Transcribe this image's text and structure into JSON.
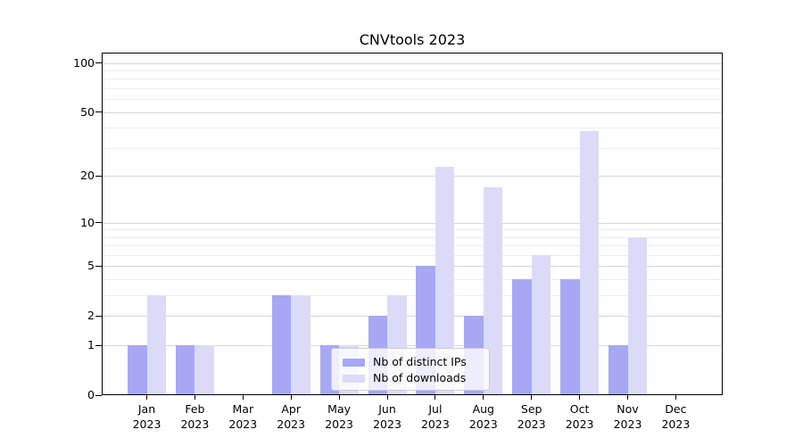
{
  "title": "CNVtools 2023",
  "chart_data": {
    "type": "bar",
    "title": "CNVtools 2023",
    "categories": [
      "Jan",
      "Feb",
      "Mar",
      "Apr",
      "May",
      "Jun",
      "Jul",
      "Aug",
      "Sep",
      "Oct",
      "Nov",
      "Dec"
    ],
    "x_tick_sublabel": "2023",
    "series": [
      {
        "name": "Nb of distinct IPs",
        "color": "#a7a7f4",
        "values": [
          1,
          1,
          0,
          3,
          1,
          2,
          5,
          2,
          4,
          4,
          1,
          0
        ]
      },
      {
        "name": "Nb of downloads",
        "color": "#dbdbf8",
        "values": [
          3,
          1,
          0,
          3,
          1,
          3,
          23,
          17,
          6,
          38,
          8,
          0
        ]
      }
    ],
    "yscale": "log10(1+x)",
    "ylim": [
      0,
      113
    ],
    "yticks": [
      0,
      1,
      2,
      5,
      10,
      20,
      50,
      100
    ],
    "minor_gridlines": [
      3,
      4,
      6,
      7,
      8,
      9,
      30,
      40,
      60,
      70,
      80,
      90
    ],
    "grid": true,
    "legend_position": "lower-center-inside",
    "xlabel": "",
    "ylabel": ""
  },
  "colors": {
    "ips_bar": "#a7a7f4",
    "downloads_bar": "#dbdbf8",
    "grid_major": "#d6d6d6",
    "grid_minor": "#ededed",
    "spine": "#000000",
    "legend_border": "#cccccc",
    "background": "#ffffff"
  }
}
